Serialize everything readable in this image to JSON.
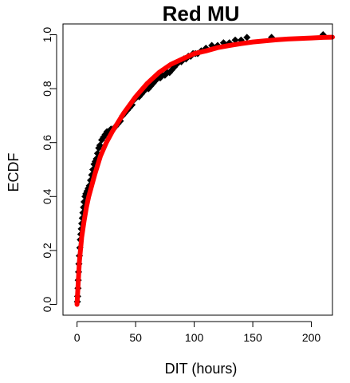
{
  "chart_data": {
    "type": "scatter",
    "title": "Red MU",
    "xlabel": "DIT (hours)",
    "ylabel": "ECDF",
    "xlim": [
      -12,
      218
    ],
    "ylim": [
      -0.04,
      1.04
    ],
    "x_ticks": [
      0,
      50,
      100,
      150,
      200
    ],
    "x_tick_labels": [
      "0",
      "50",
      "100",
      "150",
      "200"
    ],
    "y_ticks": [
      0.0,
      0.2,
      0.4,
      0.6,
      0.8,
      1.0
    ],
    "y_tick_labels": [
      "0.0",
      "0.2",
      "0.4",
      "0.6",
      "0.8",
      "1.0"
    ],
    "grid": false,
    "legend": "none",
    "colors": {
      "points": "#000000",
      "fit_line": "#ff0000",
      "axis": "#000000"
    },
    "series": [
      {
        "kind": "points",
        "x": [
          0.3,
          0.5,
          0.8,
          1.0,
          1.3,
          1.6,
          2.0,
          2.4,
          2.8,
          3.2,
          3.6,
          4.0,
          4.5,
          5.0,
          5.5,
          6.0,
          6.8,
          7.5,
          8.5,
          9.5,
          10.5,
          11.5,
          12.5,
          13.5,
          14.5,
          15.5,
          16.5,
          17.5,
          18.5,
          19.5,
          21.0,
          22.5,
          24.0,
          25.5,
          27.0,
          29.0,
          31.0,
          33.0,
          35.0,
          37.0,
          39.0,
          41.0,
          43.0,
          45.0,
          47.0,
          49.0,
          51.0,
          53.0,
          55.0,
          57.0,
          59.0,
          61.0,
          63.0,
          65.0,
          67.0,
          69.0,
          71.0,
          73.0,
          75.0,
          77.0,
          79.0,
          81.0,
          83.0,
          85.0,
          87.0,
          89.0,
          91.0,
          93.0,
          95.0,
          97.0,
          99.0,
          101.0,
          103.0,
          106.0,
          110.0,
          115.0,
          120.0,
          125.0,
          130.0,
          135.0,
          140.0,
          145.0,
          166.0,
          210.0
        ],
        "y": [
          0.01,
          0.03,
          0.06,
          0.09,
          0.12,
          0.15,
          0.18,
          0.21,
          0.24,
          0.26,
          0.28,
          0.3,
          0.32,
          0.34,
          0.36,
          0.38,
          0.4,
          0.41,
          0.42,
          0.43,
          0.44,
          0.46,
          0.48,
          0.5,
          0.52,
          0.53,
          0.54,
          0.56,
          0.58,
          0.59,
          0.61,
          0.62,
          0.63,
          0.64,
          0.64,
          0.65,
          0.65,
          0.66,
          0.67,
          0.68,
          0.7,
          0.71,
          0.72,
          0.73,
          0.74,
          0.76,
          0.77,
          0.77,
          0.78,
          0.79,
          0.8,
          0.8,
          0.81,
          0.82,
          0.83,
          0.84,
          0.84,
          0.85,
          0.85,
          0.86,
          0.86,
          0.87,
          0.88,
          0.89,
          0.9,
          0.9,
          0.91,
          0.91,
          0.92,
          0.92,
          0.93,
          0.93,
          0.93,
          0.94,
          0.95,
          0.96,
          0.96,
          0.97,
          0.97,
          0.98,
          0.98,
          0.99,
          0.99,
          1.0
        ]
      },
      {
        "kind": "line",
        "x": [
          0,
          2,
          4,
          6,
          8,
          10,
          15,
          20,
          25,
          30,
          40,
          50,
          60,
          70,
          80,
          90,
          100,
          110,
          120,
          130,
          140,
          150,
          160,
          170,
          180,
          190,
          200,
          210,
          218
        ],
        "y": [
          0.0,
          0.16,
          0.25,
          0.31,
          0.36,
          0.4,
          0.48,
          0.55,
          0.6,
          0.64,
          0.71,
          0.77,
          0.82,
          0.86,
          0.89,
          0.91,
          0.93,
          0.94,
          0.952,
          0.96,
          0.967,
          0.973,
          0.977,
          0.981,
          0.984,
          0.986,
          0.988,
          0.99,
          0.991
        ]
      }
    ]
  }
}
